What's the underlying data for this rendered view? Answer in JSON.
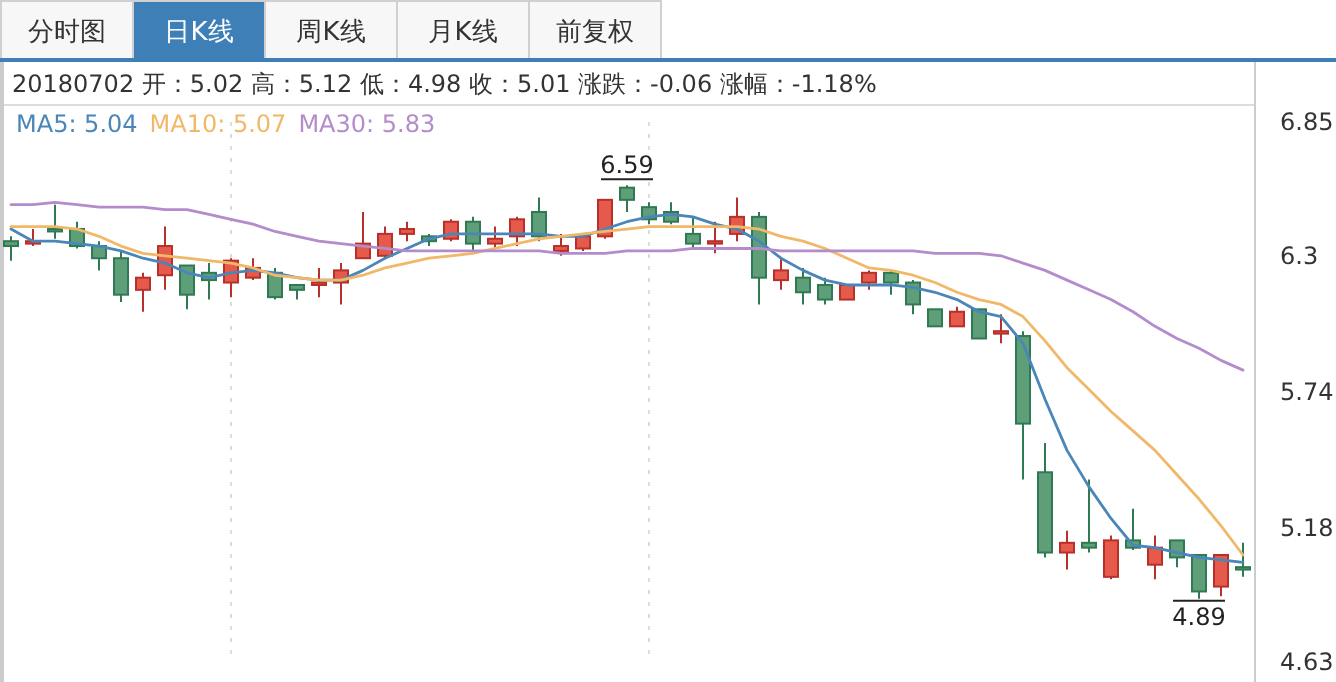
{
  "chart_data": {
    "type": "candlestick",
    "categories": [
      null,
      null,
      null,
      null,
      null,
      null,
      null,
      null,
      null,
      null,
      null,
      null,
      null,
      null,
      null,
      null,
      null,
      null,
      null,
      null,
      null,
      null,
      null,
      null,
      null,
      null,
      null,
      null,
      null,
      null,
      null,
      null,
      null,
      null,
      null,
      null,
      null,
      null,
      null,
      null,
      null,
      null,
      null,
      null,
      null,
      null,
      null,
      null,
      null,
      null,
      null,
      null,
      null,
      null,
      null,
      null,
      null
    ],
    "ohlc": [
      [
        6.36,
        6.38,
        6.28,
        6.34
      ],
      [
        6.35,
        6.41,
        6.34,
        6.36
      ],
      [
        6.41,
        6.51,
        6.37,
        6.4
      ],
      [
        6.41,
        6.44,
        6.33,
        6.34
      ],
      [
        6.34,
        6.36,
        6.24,
        6.29
      ],
      [
        6.29,
        6.32,
        6.11,
        6.14
      ],
      [
        6.16,
        6.23,
        6.07,
        6.21
      ],
      [
        6.22,
        6.42,
        6.16,
        6.34
      ],
      [
        6.26,
        6.26,
        6.08,
        6.14
      ],
      [
        6.23,
        6.27,
        6.12,
        6.2
      ],
      [
        6.19,
        6.29,
        6.13,
        6.28
      ],
      [
        6.21,
        6.29,
        6.2,
        6.25
      ],
      [
        6.23,
        6.25,
        6.12,
        6.13
      ],
      [
        6.18,
        6.18,
        6.12,
        6.16
      ],
      [
        6.18,
        6.25,
        6.13,
        6.19
      ],
      [
        6.19,
        6.27,
        6.1,
        6.24
      ],
      [
        6.29,
        6.48,
        6.29,
        6.35
      ],
      [
        6.3,
        6.42,
        6.29,
        6.39
      ],
      [
        6.39,
        6.44,
        6.36,
        6.41
      ],
      [
        6.38,
        6.39,
        6.34,
        6.36
      ],
      [
        6.37,
        6.45,
        6.36,
        6.44
      ],
      [
        6.44,
        6.46,
        6.32,
        6.35
      ],
      [
        6.35,
        6.42,
        6.33,
        6.37
      ],
      [
        6.38,
        6.46,
        6.34,
        6.45
      ],
      [
        6.48,
        6.54,
        6.36,
        6.38
      ],
      [
        6.32,
        6.39,
        6.3,
        6.34
      ],
      [
        6.33,
        6.38,
        6.32,
        6.38
      ],
      [
        6.38,
        6.53,
        6.37,
        6.53
      ],
      [
        6.58,
        6.59,
        6.48,
        6.53
      ],
      [
        6.5,
        6.52,
        6.43,
        6.45
      ],
      [
        6.48,
        6.52,
        6.43,
        6.44
      ],
      [
        6.39,
        6.46,
        6.33,
        6.35
      ],
      [
        6.35,
        6.44,
        6.31,
        6.36
      ],
      [
        6.39,
        6.54,
        6.36,
        6.46
      ],
      [
        6.46,
        6.48,
        6.1,
        6.21
      ],
      [
        6.2,
        6.29,
        6.16,
        6.24
      ],
      [
        6.21,
        6.25,
        6.1,
        6.15
      ],
      [
        6.18,
        6.21,
        6.1,
        6.12
      ],
      [
        6.12,
        6.18,
        6.12,
        6.18
      ],
      [
        6.19,
        6.24,
        6.16,
        6.23
      ],
      [
        6.23,
        6.24,
        6.14,
        6.19
      ],
      [
        6.19,
        6.2,
        6.06,
        6.1
      ],
      [
        6.08,
        6.08,
        6.01,
        6.01
      ],
      [
        6.01,
        6.09,
        6.01,
        6.07
      ],
      [
        6.08,
        6.08,
        5.96,
        5.96
      ],
      [
        5.98,
        6.06,
        5.94,
        5.99
      ],
      [
        5.97,
        5.99,
        5.38,
        5.61
      ],
      [
        5.41,
        5.53,
        5.06,
        5.08
      ],
      [
        5.08,
        5.17,
        5.01,
        5.12
      ],
      [
        5.12,
        5.38,
        5.08,
        5.1
      ],
      [
        4.98,
        5.15,
        4.97,
        5.13
      ],
      [
        5.13,
        5.26,
        5.09,
        5.1
      ],
      [
        5.03,
        5.15,
        4.97,
        5.1
      ],
      [
        5.13,
        5.13,
        5.02,
        5.06
      ],
      [
        5.07,
        5.07,
        4.89,
        4.92
      ],
      [
        4.94,
        5.07,
        4.9,
        5.07
      ],
      [
        5.02,
        5.12,
        4.98,
        5.01
      ]
    ],
    "colors": [
      "#5e9f7a",
      "#e65a4b",
      "#5e9f7a",
      "#5e9f7a",
      "#5e9f7a",
      "#5e9f7a",
      "#e65a4b",
      "#e65a4b",
      "#5e9f7a",
      "#5e9f7a",
      "#e65a4b",
      "#e65a4b",
      "#5e9f7a",
      "#5e9f7a",
      "#e65a4b",
      "#e65a4b",
      "#e65a4b",
      "#e65a4b",
      "#e65a4b",
      "#5e9f7a",
      "#e65a4b",
      "#5e9f7a",
      "#e65a4b",
      "#e65a4b",
      "#5e9f7a",
      "#e65a4b",
      "#e65a4b",
      "#e65a4b",
      "#5e9f7a",
      "#5e9f7a",
      "#5e9f7a",
      "#5e9f7a",
      "#e65a4b",
      "#e65a4b",
      "#5e9f7a",
      "#e65a4b",
      "#5e9f7a",
      "#5e9f7a",
      "#e65a4b",
      "#e65a4b",
      "#5e9f7a",
      "#5e9f7a",
      "#5e9f7a",
      "#e65a4b",
      "#5e9f7a",
      "#e65a4b",
      "#5e9f7a",
      "#5e9f7a",
      "#e65a4b",
      "#5e9f7a",
      "#e65a4b",
      "#5e9f7a",
      "#e65a4b",
      "#5e9f7a",
      "#5e9f7a",
      "#e65a4b",
      "#5e9f7a"
    ],
    "series": [
      {
        "type": "line",
        "name": "MA5: 5.04",
        "color": "#4a86b8",
        "values": [
          6.41,
          6.36,
          6.36,
          6.35,
          6.34,
          6.32,
          6.29,
          6.27,
          6.23,
          6.21,
          6.23,
          6.24,
          6.23,
          6.21,
          6.2,
          6.2,
          6.24,
          6.29,
          6.33,
          6.37,
          6.39,
          6.39,
          6.39,
          6.39,
          6.39,
          6.38,
          6.38,
          6.41,
          6.44,
          6.46,
          6.47,
          6.46,
          6.43,
          6.41,
          6.36,
          6.29,
          6.24,
          6.2,
          6.18,
          6.18,
          6.18,
          6.17,
          6.15,
          6.12,
          6.07,
          6.05,
          5.94,
          5.71,
          5.5,
          5.35,
          5.22,
          5.11,
          5.1,
          5.08,
          5.06,
          5.05,
          5.04
        ]
      },
      {
        "type": "line",
        "name": "MA10: 5.07",
        "color": "#f0b868",
        "values": [
          6.42,
          6.42,
          6.42,
          6.41,
          6.38,
          6.34,
          6.31,
          6.3,
          6.29,
          6.28,
          6.27,
          6.25,
          6.22,
          6.21,
          6.2,
          6.2,
          6.22,
          6.25,
          6.27,
          6.29,
          6.3,
          6.31,
          6.33,
          6.35,
          6.37,
          6.38,
          6.39,
          6.4,
          6.41,
          6.42,
          6.42,
          6.42,
          6.42,
          6.42,
          6.41,
          6.38,
          6.36,
          6.33,
          6.29,
          6.25,
          6.24,
          6.22,
          6.19,
          6.15,
          6.12,
          6.1,
          6.05,
          5.95,
          5.84,
          5.75,
          5.66,
          5.58,
          5.5,
          5.4,
          5.3,
          5.19,
          5.07
        ]
      },
      {
        "type": "line",
        "name": "MA30: 5.83",
        "color": "#b48ccc",
        "values": [
          6.51,
          6.51,
          6.52,
          6.51,
          6.5,
          6.5,
          6.5,
          6.49,
          6.49,
          6.47,
          6.45,
          6.43,
          6.4,
          6.38,
          6.36,
          6.35,
          6.34,
          6.33,
          6.32,
          6.32,
          6.32,
          6.32,
          6.32,
          6.32,
          6.32,
          6.31,
          6.31,
          6.31,
          6.32,
          6.32,
          6.32,
          6.33,
          6.33,
          6.33,
          6.33,
          6.32,
          6.32,
          6.32,
          6.32,
          6.32,
          6.32,
          6.32,
          6.31,
          6.31,
          6.31,
          6.3,
          6.27,
          6.24,
          6.2,
          6.16,
          6.12,
          6.07,
          6.01,
          5.96,
          5.92,
          5.87,
          5.83
        ]
      }
    ],
    "ylim": [
      4.63,
      6.85
    ],
    "yticks": [
      6.85,
      6.3,
      5.74,
      5.18,
      4.63
    ],
    "tick_labels": "y",
    "legend": "top left",
    "annotations": [
      "分时图",
      "日K线",
      "周K线",
      "月K线",
      "前复权",
      "20180702 开：5.02 高：5.12 低：4.98 收：5.01 涨跌：-0.06 涨幅：-1.18%",
      {
        "text": "6.59",
        "y": 6.59
      },
      {
        "text": "4.89",
        "y": 4.89
      }
    ]
  }
}
